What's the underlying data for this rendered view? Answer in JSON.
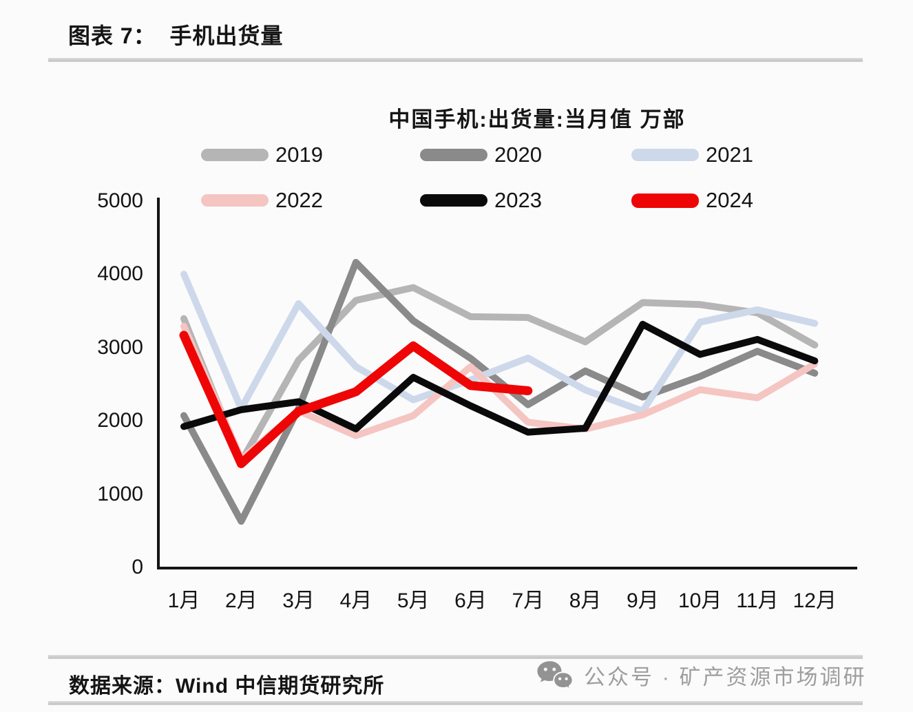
{
  "header": {
    "title": "图表 7：  手机出货量"
  },
  "chart_data": {
    "type": "line",
    "title": "中国手机:出货量:当月值 万部",
    "unit": "万部",
    "categories": [
      "1月",
      "2月",
      "3月",
      "4月",
      "5月",
      "6月",
      "7月",
      "8月",
      "9月",
      "10月",
      "11月",
      "12月"
    ],
    "ylim": [
      0,
      5000
    ],
    "yticks": [
      0,
      1000,
      2000,
      3000,
      4000,
      5000
    ],
    "grid": false,
    "legend_position": "top",
    "series": [
      {
        "name": "2019",
        "color": "#b5b5b5",
        "width": 10,
        "values": [
          3404.8,
          1451.1,
          2837.3,
          3653.2,
          3829.3,
          3431.0,
          3419.9,
          3087.5,
          3623.6,
          3596.9,
          3484.2,
          3044.4
        ]
      },
      {
        "name": "2020",
        "color": "#8a8a8a",
        "width": 10,
        "values": [
          2081.3,
          638.4,
          2175.6,
          4172.8,
          3375.9,
          2863.0,
          2230.1,
          2690.7,
          2333.4,
          2615.3,
          2958.4,
          2659.5
        ]
      },
      {
        "name": "2021",
        "color": "#cdd9ea",
        "width": 10,
        "values": [
          4012.0,
          2175.9,
          3609.4,
          2748.6,
          2296.8,
          2566.4,
          2867.6,
          2430.6,
          2144.0,
          3357.5,
          3525.2,
          3340.1
        ]
      },
      {
        "name": "2022",
        "color": "#f5c5c2",
        "width": 10,
        "values": [
          3302.2,
          1486.4,
          2146.0,
          1807.9,
          2080.5,
          2747.8,
          1990.8,
          1897.5,
          2092.1,
          2435.6,
          2323.8,
          2786.0
        ]
      },
      {
        "name": "2023",
        "color": "#0a0a0a",
        "width": 10,
        "values": [
          1932.8,
          2161.4,
          2270.7,
          1899.0,
          2603.7,
          2214.9,
          1855.2,
          1909.0,
          3327.7,
          2916.2,
          3121.1,
          2827.7
        ]
      },
      {
        "name": "2024",
        "color": "#ee0606",
        "width": 13,
        "values": [
          3177.8,
          1425.9,
          2138.1,
          2407.1,
          3032.9,
          2491.2,
          2420.4
        ]
      }
    ]
  },
  "footer": {
    "source": "数据来源：Wind 中信期货研究所",
    "watermark": "公众号 · 矿产资源市场调研"
  }
}
